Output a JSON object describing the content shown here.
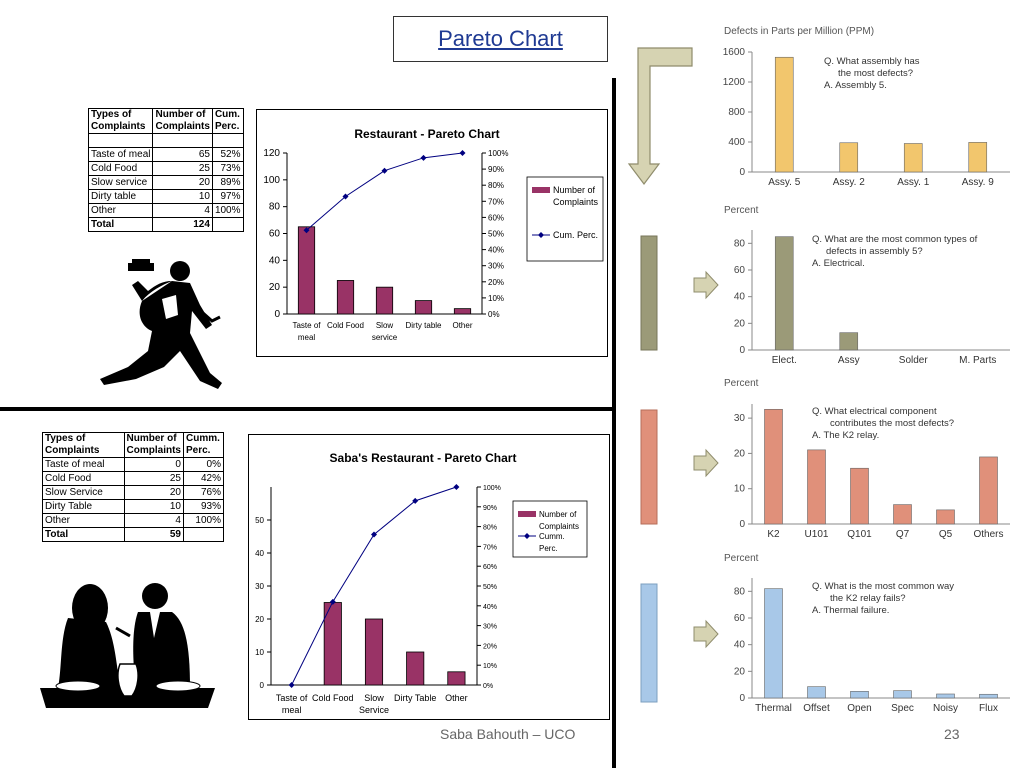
{
  "slide": {
    "title": "Pareto Chart",
    "footer_author": "Saba Bahouth – UCO",
    "page_number": "23"
  },
  "table1": {
    "headers": [
      "Types of Complaints",
      "Number of Complaints",
      "Cum. Perc."
    ],
    "rows": [
      [
        "Taste of meal",
        "65",
        "52%"
      ],
      [
        "Cold Food",
        "25",
        "73%"
      ],
      [
        "Slow service",
        "20",
        "89%"
      ],
      [
        "Dirty table",
        "10",
        "97%"
      ],
      [
        "Other",
        "4",
        "100%"
      ]
    ],
    "total": [
      "Total",
      "124",
      ""
    ]
  },
  "table2": {
    "headers": [
      "Types of Complaints",
      "Number of Complaints",
      "Cumm. Perc."
    ],
    "rows": [
      [
        "Taste of meal",
        "0",
        "0%"
      ],
      [
        "Cold Food",
        "25",
        "42%"
      ],
      [
        "Slow Service",
        "20",
        "76%"
      ],
      [
        "Dirty Table",
        "10",
        "93%"
      ],
      [
        "Other",
        "4",
        "100%"
      ]
    ],
    "total": [
      "Total",
      "59",
      ""
    ]
  },
  "colors": {
    "bar_purple": "#993366",
    "line_navy": "#000080",
    "arrow_fill": "#d6d3b2",
    "yellow": "#f2c66d",
    "olive": "#9b9a78",
    "salmon": "#e0907a",
    "blue": "#a8c8e8"
  },
  "chart_data": [
    {
      "id": "restaurant",
      "type": "bar",
      "title": "Restaurant - Pareto Chart",
      "categories": [
        "Taste of meal",
        "Cold Food",
        "Slow service",
        "Dirty table",
        "Other"
      ],
      "series": [
        {
          "name": "Number of Complaints",
          "type": "bar",
          "values": [
            65,
            25,
            20,
            10,
            4
          ]
        },
        {
          "name": "Cum. Perc.",
          "type": "line",
          "axis": "right",
          "values": [
            52,
            73,
            89,
            97,
            100
          ]
        }
      ],
      "ylim": [
        0,
        120
      ],
      "yticks": [
        0,
        20,
        40,
        60,
        80,
        100,
        120
      ],
      "y2lim": [
        0,
        100
      ],
      "y2ticks": [
        0,
        10,
        20,
        30,
        40,
        50,
        60,
        70,
        80,
        90,
        100
      ],
      "legend": "right"
    },
    {
      "id": "saba",
      "type": "bar",
      "title": "Saba's Restaurant - Pareto Chart",
      "categories": [
        "Taste of meal",
        "Cold Food",
        "Slow Service",
        "Dirty Table",
        "Other"
      ],
      "series": [
        {
          "name": "Number of Complaints",
          "type": "bar",
          "values": [
            0,
            25,
            20,
            10,
            4
          ]
        },
        {
          "name": "Cumm. Perc.",
          "type": "line",
          "axis": "right",
          "values": [
            0,
            42,
            76,
            93,
            100
          ]
        }
      ],
      "ylim": [
        0,
        60
      ],
      "yticks": [
        0,
        10,
        20,
        30,
        40,
        50
      ],
      "y2lim": [
        0,
        100
      ],
      "y2ticks": [
        0,
        10,
        20,
        30,
        40,
        50,
        60,
        70,
        80,
        90,
        100
      ],
      "legend": "top-right"
    },
    {
      "id": "ppm",
      "type": "bar",
      "ylabel": "Defects in Parts per Million (PPM)",
      "categories": [
        "Assy. 5",
        "Assy. 2",
        "Assy. 1",
        "Assy. 9"
      ],
      "values": [
        1530,
        390,
        380,
        395
      ],
      "ylim": [
        0,
        1600
      ],
      "yticks": [
        0,
        400,
        800,
        1200,
        1600
      ],
      "color": "#f2c66d",
      "annotation": [
        "Q. What assembly has",
        "the most defects?",
        "A.  Assembly 5."
      ]
    },
    {
      "id": "defect-types",
      "type": "bar",
      "ylabel": "Percent",
      "categories": [
        "Elect.",
        "Assy",
        "Solder",
        "M. Parts"
      ],
      "values": [
        85,
        13,
        0,
        0
      ],
      "ylim": [
        0,
        90
      ],
      "yticks": [
        0,
        20,
        40,
        60,
        80
      ],
      "color": "#9b9a78",
      "annotation": [
        "Q. What are the most common types of",
        "defects in assembly 5?",
        "A.  Electrical."
      ]
    },
    {
      "id": "components",
      "type": "bar",
      "ylabel": "Percent",
      "categories": [
        "K2",
        "U101",
        "Q101",
        "Q7",
        "Q5",
        "Others"
      ],
      "values": [
        32.5,
        21,
        15.8,
        5.5,
        4,
        19
      ],
      "ylim": [
        0,
        34
      ],
      "yticks": [
        0,
        10,
        20,
        30
      ],
      "color": "#e0907a",
      "annotation": [
        "Q.  What electrical component",
        "contributes the most defects?",
        "A.  The K2 relay."
      ]
    },
    {
      "id": "failure-modes",
      "type": "bar",
      "ylabel": "Percent",
      "categories": [
        "Thermal",
        "Offset",
        "Open",
        "Spec",
        "Noisy",
        "Flux"
      ],
      "values": [
        82,
        8.5,
        5,
        5.5,
        3,
        2.8
      ],
      "ylim": [
        0,
        90
      ],
      "yticks": [
        0,
        20,
        40,
        60,
        80
      ],
      "color": "#a8c8e8",
      "annotation": [
        "Q.  What is the most common way",
        "the K2 relay fails?",
        "A.  Thermal failure."
      ]
    }
  ]
}
